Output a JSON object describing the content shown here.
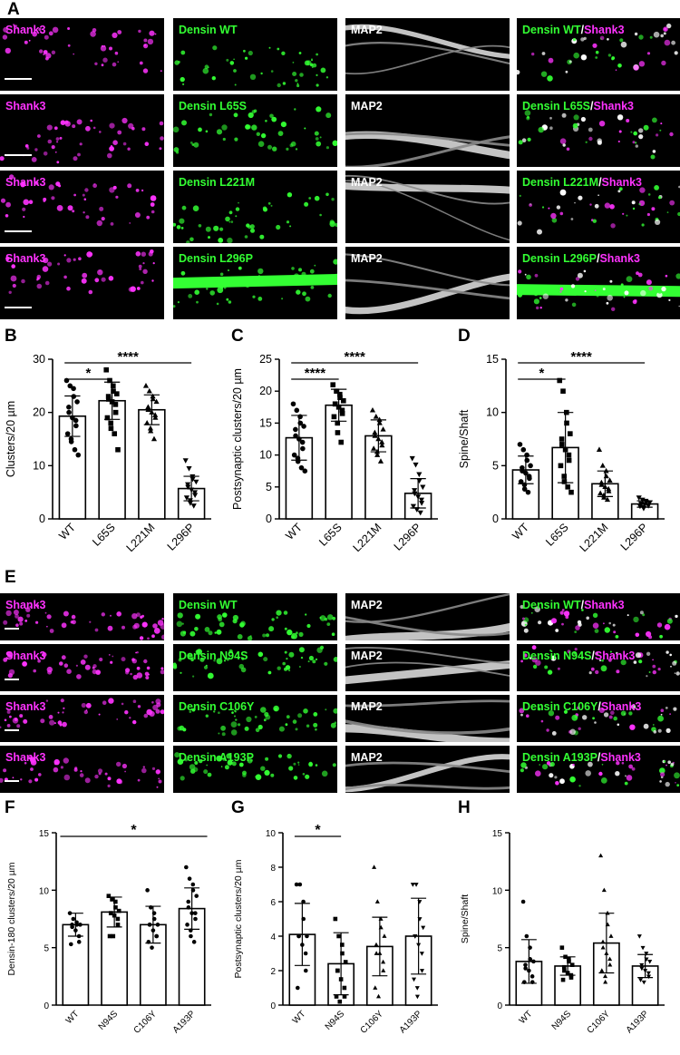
{
  "panel_letters": {
    "A": "A",
    "B": "B",
    "C": "C",
    "D": "D",
    "E": "E",
    "F": "F",
    "G": "G",
    "H": "H"
  },
  "grid_A": {
    "rows": [
      {
        "shank": "Shank3",
        "densin": "Densin WT",
        "map2": "MAP2",
        "merge_a": "Densin WT",
        "merge_sep": "/",
        "merge_b": "Shank3"
      },
      {
        "shank": "Shank3",
        "densin": "Densin L65S",
        "map2": "MAP2",
        "merge_a": "Densin L65S",
        "merge_sep": "/",
        "merge_b": "Shank3"
      },
      {
        "shank": "Shank3",
        "densin": "Densin L221M",
        "map2": "MAP2",
        "merge_a": "Densin L221M",
        "merge_sep": "/",
        "merge_b": "Shank3"
      },
      {
        "shank": "Shank3",
        "densin": "Densin L296P",
        "map2": "MAP2",
        "merge_a": "Densin L296P",
        "merge_sep": "/",
        "merge_b": "Shank3"
      }
    ]
  },
  "grid_E": {
    "rows": [
      {
        "shank": "Shank3",
        "densin": "Densin WT",
        "map2": "MAP2",
        "merge_a": "Densin WT",
        "merge_sep": "/",
        "merge_b": "Shank3"
      },
      {
        "shank": "Shank3",
        "densin": "Densin N94S",
        "map2": "MAP2",
        "merge_a": "Densin N94S",
        "merge_sep": "/",
        "merge_b": "Shank3"
      },
      {
        "shank": "Shank3",
        "densin": "Densin C106Y",
        "map2": "MAP2",
        "merge_a": "Densin C106Y",
        "merge_sep": "/",
        "merge_b": "Shank3"
      },
      {
        "shank": "Shank3",
        "densin": "Densin A193P",
        "map2": "MAP2",
        "merge_a": "Densin A193P",
        "merge_sep": "/",
        "merge_b": "Shank3"
      }
    ]
  },
  "colors": {
    "magenta": "#ff33ff",
    "green": "#33ff33",
    "white": "#ffffff"
  },
  "chart_data": [
    {
      "id": "B",
      "type": "bar",
      "categories": [
        "WT",
        "L65S",
        "L221M",
        "L296P"
      ],
      "values": [
        19.3,
        22.2,
        20.5,
        5.7
      ],
      "errors": [
        3.8,
        3.5,
        2.8,
        2.3
      ],
      "ylabel": "Clusters/20 µm",
      "ylim": [
        0,
        30
      ],
      "yticks": [
        "0",
        "10",
        "20",
        "30"
      ],
      "markers": [
        "circle",
        "square",
        "triangle",
        "triangle-down"
      ],
      "points": [
        [
          26,
          25,
          24.5,
          23,
          22,
          21,
          20,
          19,
          18.5,
          17.5,
          16,
          15,
          14.5,
          13,
          12
        ],
        [
          28,
          26,
          25,
          24,
          23.5,
          23,
          22.5,
          22,
          21.5,
          20,
          19,
          18,
          17,
          16,
          13
        ],
        [
          25,
          24,
          23,
          22.5,
          22,
          21,
          20.5,
          20,
          19.5,
          19,
          18,
          17,
          16.5,
          15
        ],
        [
          11,
          9.5,
          8,
          7.5,
          7,
          6.5,
          6,
          5.5,
          5,
          4.5,
          4,
          3.5,
          3,
          2.5
        ]
      ],
      "significance": [
        {
          "from": 0,
          "to": 1,
          "label": "*"
        },
        {
          "from": 0,
          "to": 3,
          "label": "****"
        }
      ]
    },
    {
      "id": "C",
      "type": "bar",
      "categories": [
        "WT",
        "L65S",
        "L221M",
        "L296P"
      ],
      "values": [
        12.7,
        17.8,
        13.0,
        4.0
      ],
      "errors": [
        3.5,
        2.5,
        2.5,
        2.3
      ],
      "ylabel": "Postsynaptic clusters/20 µm",
      "ylim": [
        0,
        25
      ],
      "yticks": [
        "0",
        "5",
        "10",
        "15",
        "20",
        "25"
      ],
      "markers": [
        "circle",
        "square",
        "triangle",
        "triangle-down"
      ],
      "points": [
        [
          18,
          17,
          16,
          15,
          14.5,
          14,
          13,
          12.5,
          12,
          11,
          10,
          9.5,
          9,
          8,
          7.5
        ],
        [
          21,
          20,
          19.5,
          19,
          18.5,
          18,
          18,
          17.5,
          17,
          16.5,
          16,
          15,
          13.5,
          12
        ],
        [
          17,
          16,
          15.5,
          15,
          14,
          13.5,
          13,
          12.5,
          12,
          11.5,
          11,
          10.5,
          10,
          9
        ],
        [
          9.5,
          8.5,
          7,
          6,
          5,
          4.5,
          4,
          3.5,
          3,
          2.5,
          2,
          1.5,
          1.5,
          1
        ]
      ],
      "significance": [
        {
          "from": 0,
          "to": 1,
          "label": "****"
        },
        {
          "from": 0,
          "to": 3,
          "label": "****"
        }
      ]
    },
    {
      "id": "D",
      "type": "bar",
      "categories": [
        "WT",
        "L65S",
        "L221M",
        "L296P"
      ],
      "values": [
        4.6,
        6.7,
        3.3,
        1.4
      ],
      "errors": [
        1.3,
        3.3,
        1.2,
        0.3
      ],
      "ylabel": "Spine/Shaft",
      "ylim": [
        0,
        15
      ],
      "yticks": [
        "0",
        "5",
        "10",
        "15"
      ],
      "markers": [
        "circle",
        "square",
        "triangle",
        "triangle-down"
      ],
      "points": [
        [
          7,
          6.5,
          6,
          5.5,
          5,
          4.8,
          4.5,
          4.3,
          4,
          3.8,
          3.5,
          3.2,
          2.8,
          2.5
        ],
        [
          13,
          12,
          10,
          9,
          8,
          7.5,
          7,
          6.5,
          6,
          5.5,
          5,
          4,
          3.5,
          3,
          2.5
        ],
        [
          6.5,
          5,
          4.5,
          4,
          3.6,
          3.4,
          3.2,
          3,
          2.8,
          2.6,
          2.4,
          2.2,
          2,
          1.8
        ],
        [
          2,
          1.8,
          1.7,
          1.6,
          1.5,
          1.45,
          1.4,
          1.35,
          1.3,
          1.25,
          1.2,
          1.1,
          1.0
        ]
      ],
      "significance": [
        {
          "from": 0,
          "to": 1,
          "label": "*"
        },
        {
          "from": 0,
          "to": 3,
          "label": "****"
        }
      ]
    },
    {
      "id": "F",
      "type": "bar",
      "categories": [
        "WT",
        "N94S",
        "C106Y",
        "A193P"
      ],
      "values": [
        7.0,
        8.1,
        7.0,
        8.4
      ],
      "errors": [
        1.0,
        1.3,
        1.6,
        1.8
      ],
      "ylabel": "Densin-180 clusters/20 µm",
      "ylim": [
        0,
        15
      ],
      "yticks": [
        "0",
        "5",
        "10",
        "15"
      ],
      "markers": [
        "circle",
        "square",
        "circle",
        "circle"
      ],
      "points": [
        [
          8,
          7.5,
          7.2,
          7,
          7,
          7,
          6.8,
          6.5,
          6,
          5.5,
          5.3
        ],
        [
          9.5,
          9.2,
          9,
          8.5,
          8.2,
          8,
          8,
          7.8,
          7.5,
          7,
          6,
          6
        ],
        [
          10,
          8.5,
          8,
          7.5,
          7,
          7,
          7,
          6.5,
          6,
          6,
          5.5,
          5
        ],
        [
          12,
          11,
          10.5,
          10,
          9.5,
          9,
          8.5,
          8,
          8,
          7.5,
          7,
          6.5,
          6,
          5.5
        ]
      ],
      "significance": [
        {
          "from": 0,
          "to": 3,
          "label": "*"
        }
      ]
    },
    {
      "id": "G",
      "type": "bar",
      "categories": [
        "WT",
        "N94S",
        "C106Y",
        "A193P"
      ],
      "values": [
        4.1,
        2.4,
        3.4,
        4.0
      ],
      "errors": [
        1.8,
        1.8,
        1.7,
        2.2
      ],
      "ylabel": "Postsynaptic clusters/20 µm",
      "ylim": [
        0,
        10
      ],
      "yticks": [
        "0",
        "2",
        "4",
        "6",
        "8",
        "10"
      ],
      "markers": [
        "circle",
        "square",
        "triangle",
        "triangle-down"
      ],
      "points": [
        [
          7,
          7,
          6,
          5,
          4,
          4,
          4,
          3.5,
          3,
          2,
          1
        ],
        [
          5,
          4,
          3.5,
          3,
          2.5,
          2,
          2,
          1.5,
          1,
          0.5,
          0.5,
          0.2
        ],
        [
          8,
          6,
          5,
          4.5,
          4,
          3.5,
          3,
          3,
          2.5,
          2,
          1,
          0.5
        ],
        [
          7,
          7,
          6,
          5,
          4.5,
          4,
          4,
          3.5,
          3,
          2,
          1.5,
          1,
          0.5
        ]
      ],
      "significance": [
        {
          "from": 0,
          "to": 1,
          "label": "*"
        }
      ]
    },
    {
      "id": "H",
      "type": "bar",
      "categories": [
        "WT",
        "N94S",
        "C106Y",
        "A193P"
      ],
      "values": [
        3.8,
        3.4,
        5.4,
        3.4
      ],
      "errors": [
        1.9,
        0.8,
        2.6,
        1.0
      ],
      "ylabel": "Spine/Shaft",
      "ylim": [
        0,
        15
      ],
      "yticks": [
        "0",
        "5",
        "10",
        "15"
      ],
      "markers": [
        "circle",
        "square",
        "triangle",
        "triangle-down"
      ],
      "points": [
        [
          9,
          6,
          5,
          4,
          3.8,
          3.5,
          3.2,
          3,
          2.5,
          2,
          2
        ],
        [
          5,
          4.2,
          4,
          3.8,
          3.5,
          3.3,
          3,
          2.8,
          2.6,
          2.4,
          2.2
        ],
        [
          13,
          10,
          8,
          7,
          6,
          5.5,
          5,
          4.5,
          4,
          3.5,
          3,
          2.5,
          2
        ],
        [
          6,
          5,
          4.5,
          4,
          3.8,
          3.5,
          3.2,
          3,
          2.8,
          2.5,
          2.2,
          2
        ]
      ],
      "significance": []
    }
  ]
}
